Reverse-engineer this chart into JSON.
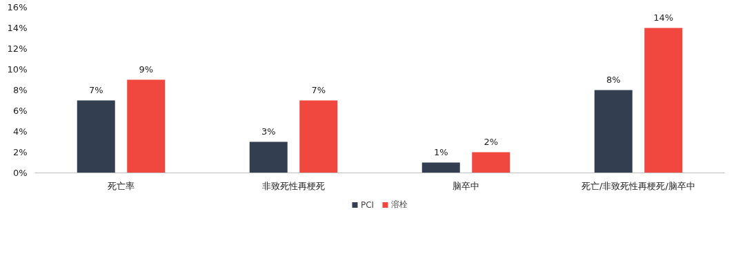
{
  "chart_data": {
    "type": "bar",
    "categories": [
      "死亡率",
      "非致死性再梗死",
      "脑卒中",
      "死亡/非致死性再梗死/脑卒中"
    ],
    "series": [
      {
        "name": "PCI",
        "color": "#333f50",
        "values": [
          7,
          3,
          1,
          8
        ],
        "value_labels": [
          "7%",
          "3%",
          "1%",
          "8%"
        ]
      },
      {
        "name": "溶栓",
        "color": "#f0473f",
        "values": [
          9,
          7,
          2,
          14
        ],
        "value_labels": [
          "9%",
          "7%",
          "2%",
          "14%"
        ]
      }
    ],
    "ylim": [
      0,
      16
    ],
    "yticks": [
      {
        "value": 0,
        "label": "0%"
      },
      {
        "value": 2,
        "label": "2%"
      },
      {
        "value": 4,
        "label": "4%"
      },
      {
        "value": 6,
        "label": "6%"
      },
      {
        "value": 8,
        "label": "8%"
      },
      {
        "value": 10,
        "label": "10%"
      },
      {
        "value": 12,
        "label": "12%"
      },
      {
        "value": 14,
        "label": "14%"
      },
      {
        "value": 16,
        "label": "16%"
      }
    ],
    "grid": false,
    "legend": "bottom"
  }
}
